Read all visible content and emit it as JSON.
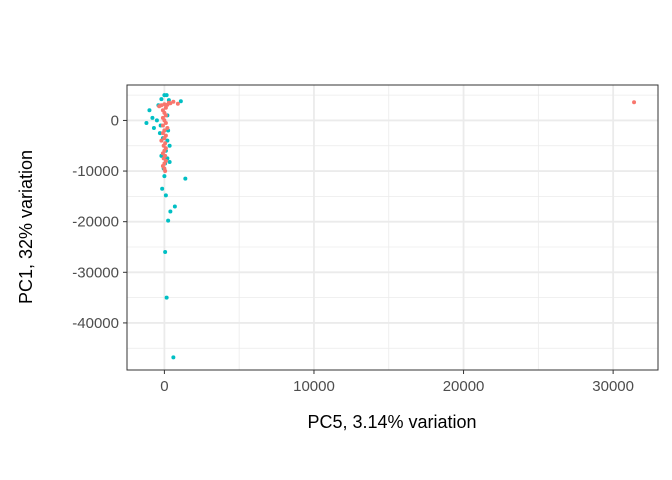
{
  "chart_data": {
    "type": "scatter",
    "title": "",
    "xlabel": "PC5, 3.14% variation",
    "ylabel": "PC1, 32% variation",
    "xlim": [
      -2500,
      33000
    ],
    "ylim": [
      -49300,
      7000
    ],
    "x_ticks": [
      0,
      10000,
      20000,
      30000
    ],
    "x_tick_labels": [
      "0",
      "10000",
      "20000",
      "30000"
    ],
    "y_ticks": [
      0,
      -10000,
      -20000,
      -30000,
      -40000
    ],
    "y_tick_labels": [
      "0",
      "-10000",
      "-20000",
      "-30000",
      "-40000"
    ],
    "grid": true,
    "legend": "none",
    "series": [
      {
        "color": "#00BFC4",
        "points": [
          [
            0,
            5000
          ],
          [
            150,
            5000
          ],
          [
            -200,
            4200
          ],
          [
            300,
            4000
          ],
          [
            1100,
            3800
          ],
          [
            -800,
            500
          ],
          [
            -1000,
            2000
          ],
          [
            -1200,
            -500
          ],
          [
            -500,
            0
          ],
          [
            -700,
            -1500
          ],
          [
            -300,
            -2500
          ],
          [
            -100,
            -3500
          ],
          [
            200,
            -4000
          ],
          [
            350,
            -5000
          ],
          [
            100,
            -6000
          ],
          [
            -200,
            -7000
          ],
          [
            50,
            -8500
          ],
          [
            200,
            -7500
          ],
          [
            350,
            -8200
          ],
          [
            -50,
            -9500
          ],
          [
            0,
            -11000
          ],
          [
            1400,
            -11500
          ],
          [
            -150,
            -13500
          ],
          [
            100,
            -14800
          ],
          [
            700,
            -17000
          ],
          [
            400,
            -18000
          ],
          [
            250,
            -19800
          ],
          [
            50,
            -26000
          ],
          [
            150,
            -35000
          ],
          [
            600,
            -46800
          ],
          [
            -250,
            -1000
          ],
          [
            250,
            -2000
          ],
          [
            -400,
            3000
          ],
          [
            0,
            -2000
          ],
          [
            200,
            1000
          ]
        ]
      },
      {
        "color": "#F8766D",
        "points": [
          [
            31400,
            3600
          ],
          [
            900,
            3300
          ],
          [
            600,
            3700
          ],
          [
            300,
            3500
          ],
          [
            0,
            3200
          ],
          [
            -200,
            3000
          ],
          [
            -350,
            2800
          ],
          [
            100,
            2500
          ],
          [
            -100,
            2000
          ],
          [
            0,
            1500
          ],
          [
            100,
            1000
          ],
          [
            -100,
            500
          ],
          [
            0,
            0
          ],
          [
            100,
            -500
          ],
          [
            -100,
            -1000
          ],
          [
            200,
            -1500
          ],
          [
            0,
            -2000
          ],
          [
            -100,
            -2500
          ],
          [
            100,
            -3000
          ],
          [
            0,
            -3500
          ],
          [
            -200,
            -4000
          ],
          [
            50,
            -4500
          ],
          [
            -50,
            -5000
          ],
          [
            100,
            -5500
          ],
          [
            0,
            -6000
          ],
          [
            -100,
            -6500
          ],
          [
            50,
            -7000
          ],
          [
            -50,
            -7500
          ],
          [
            100,
            -8000
          ],
          [
            0,
            -8500
          ],
          [
            -100,
            -9000
          ],
          [
            0,
            -9500
          ],
          [
            50,
            -10000
          ],
          [
            400,
            3400
          ],
          [
            200,
            3100
          ]
        ]
      }
    ]
  }
}
